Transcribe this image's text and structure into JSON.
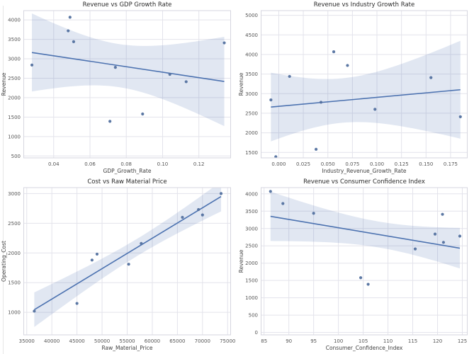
{
  "figure": {
    "background": "#ffffff",
    "accent_color": "#4c72b0",
    "dot_color": "#53719f",
    "band_opacity": 0.17,
    "grid_color": "#e3e3eb",
    "spine_color": "#d6d6df",
    "title_color": "#2a2a2a",
    "tick_color": "#555555",
    "label_color": "#404040"
  },
  "chart_data": [
    {
      "type": "scatter",
      "title": "Revenue vs GDP Growth Rate",
      "xlabel": "GDP_Growth_Rate",
      "ylabel": "Revenue",
      "regression": true,
      "ci": 95,
      "ci_scale": 0.85,
      "grid": true,
      "legend": false,
      "xlim": [
        0.0235,
        0.1375
      ],
      "ylim": [
        450,
        4240
      ],
      "xticks": [
        0.04,
        0.06,
        0.08,
        0.1,
        0.12
      ],
      "xtick_labels": [
        "0.04",
        "0.06",
        "0.08",
        "0.10",
        "0.12"
      ],
      "yticks": [
        500,
        1000,
        1500,
        2000,
        2500,
        3000,
        3500,
        4000
      ],
      "ytick_labels": [
        "500",
        "1000",
        "1500",
        "2000",
        "2500",
        "3000",
        "3500",
        "4000"
      ],
      "points": [
        [
          0.028,
          2840
        ],
        [
          0.048,
          3720
        ],
        [
          0.049,
          4070
        ],
        [
          0.051,
          3440
        ],
        [
          0.071,
          1390
        ],
        [
          0.074,
          2780
        ],
        [
          0.089,
          1580
        ],
        [
          0.104,
          2600
        ],
        [
          0.113,
          2410
        ],
        [
          0.134,
          3410
        ]
      ]
    },
    {
      "type": "scatter",
      "title": "Revenue vs Industry Growth Rate",
      "xlabel": "Industry_Revenue_Growth_Rate",
      "ylabel": "Revenue",
      "regression": true,
      "ci": 95,
      "ci_scale": 0.85,
      "grid": true,
      "legend": false,
      "xlim": [
        -0.018,
        0.192
      ],
      "ylim": [
        1360,
        5120
      ],
      "xticks": [
        0.0,
        0.025,
        0.05,
        0.075,
        0.1,
        0.125,
        0.15,
        0.175
      ],
      "xtick_labels": [
        "0.000",
        "0.025",
        "0.050",
        "0.075",
        "0.100",
        "0.125",
        "0.150",
        "0.175"
      ],
      "yticks": [
        1500,
        2000,
        2500,
        3000,
        3500,
        4000,
        4500,
        5000
      ],
      "ytick_labels": [
        "1500",
        "2000",
        "2500",
        "3000",
        "3500",
        "4000",
        "4500",
        "5000"
      ],
      "points": [
        [
          -0.008,
          2840
        ],
        [
          -0.003,
          1390
        ],
        [
          0.011,
          3440
        ],
        [
          0.038,
          1580
        ],
        [
          0.043,
          2780
        ],
        [
          0.056,
          4070
        ],
        [
          0.07,
          3720
        ],
        [
          0.098,
          2600
        ],
        [
          0.155,
          3410
        ],
        [
          0.185,
          2410
        ]
      ]
    },
    {
      "type": "scatter",
      "title": "Cost vs Raw Material Price",
      "xlabel": "Raw_Material_Price",
      "ylabel": "Operating_Cost",
      "regression": true,
      "ci": 95,
      "ci_scale": 1.0,
      "grid": true,
      "legend": false,
      "xlim": [
        34400,
        75600
      ],
      "ylim": [
        620,
        3100
      ],
      "xticks": [
        35000,
        40000,
        45000,
        50000,
        55000,
        60000,
        65000,
        70000,
        75000
      ],
      "xtick_labels": [
        "35000",
        "40000",
        "45000",
        "50000",
        "55000",
        "60000",
        "65000",
        "70000",
        "75000"
      ],
      "yticks": [
        1000,
        1500,
        2000,
        2500,
        3000
      ],
      "ytick_labels": [
        "1000",
        "1500",
        "2000",
        "2500",
        "3000"
      ],
      "points": [
        [
          36500,
          1020
        ],
        [
          45000,
          1150
        ],
        [
          48000,
          1880
        ],
        [
          49000,
          1980
        ],
        [
          55300,
          1810
        ],
        [
          57800,
          2160
        ],
        [
          66000,
          2600
        ],
        [
          69200,
          2730
        ],
        [
          70000,
          2640
        ],
        [
          73700,
          3000
        ]
      ]
    },
    {
      "type": "scatter",
      "title": "Revenue vs Consumer Confidence Index",
      "xlabel": "Consumer_Confidence_Index",
      "ylabel": "Revenue",
      "regression": true,
      "ci": 95,
      "ci_scale": 0.6,
      "grid": true,
      "legend": false,
      "xlim": [
        84.4,
        126.0
      ],
      "ylim": [
        -70,
        4180
      ],
      "xticks": [
        85,
        90,
        95,
        100,
        105,
        110,
        115,
        120,
        125
      ],
      "xtick_labels": [
        "85",
        "90",
        "95",
        "100",
        "105",
        "110",
        "115",
        "120",
        "125"
      ],
      "yticks": [
        0,
        500,
        1000,
        1500,
        2000,
        2500,
        3000,
        3500,
        4000
      ],
      "ytick_labels": [
        "0",
        "500",
        "1000",
        "1500",
        "2000",
        "2500",
        "3000",
        "3500",
        "4000"
      ],
      "points": [
        [
          86.3,
          4070
        ],
        [
          88.8,
          3720
        ],
        [
          95.0,
          3440
        ],
        [
          104.5,
          1580
        ],
        [
          106.0,
          1390
        ],
        [
          115.5,
          2410
        ],
        [
          119.5,
          2840
        ],
        [
          121.0,
          3410
        ],
        [
          121.2,
          2600
        ],
        [
          124.5,
          2780
        ]
      ]
    }
  ]
}
